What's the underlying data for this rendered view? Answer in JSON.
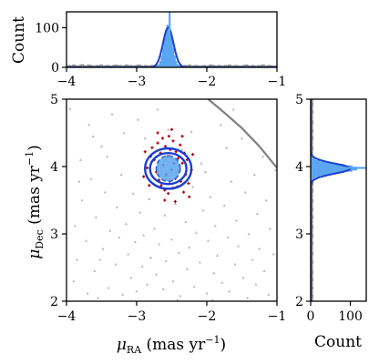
{
  "chart_data": [
    {
      "id": "top-histogram",
      "type": "histogram",
      "xlabel": "",
      "ylabel": "Count",
      "xlim": [
        -4,
        -1
      ],
      "ylim": [
        0,
        140
      ],
      "yticks": [
        "0",
        "100"
      ],
      "xticks": [
        "−4",
        "−3",
        "−2",
        "−1"
      ],
      "background_bins": {
        "x_start": -4.0,
        "x_end": -1.0,
        "bin_width": 0.03,
        "counts": [
          3,
          4,
          2,
          5,
          3,
          2,
          4,
          6,
          3,
          2,
          5,
          4,
          3,
          2,
          4,
          3,
          5,
          2,
          3,
          4,
          3,
          2,
          4,
          5,
          3,
          4,
          2,
          3,
          5,
          3,
          4,
          2,
          3,
          4,
          5,
          3,
          2,
          4,
          3,
          2,
          4,
          3,
          5,
          2,
          3,
          4,
          3,
          2,
          3,
          4,
          5,
          3,
          2,
          4,
          3,
          2,
          4,
          3,
          5,
          2,
          3,
          4,
          3,
          2,
          3,
          4,
          2,
          3,
          5,
          4,
          3,
          2,
          4,
          3,
          2,
          4,
          3,
          5,
          2,
          3,
          4,
          3,
          2,
          3,
          4,
          5,
          3,
          2,
          4,
          3,
          2,
          4,
          3,
          5,
          2,
          3,
          4,
          3,
          2,
          3
        ]
      },
      "member_histogram": {
        "center": -2.55,
        "sigma": 0.055,
        "peak": 108
      },
      "gaussian_fit": {
        "mean": -2.55,
        "sigma": 0.075,
        "amplitude": 100
      },
      "marker_x": -2.53,
      "colors": {
        "member": "#5aa6f0",
        "fit": "#1a3fd1",
        "background": "#7f7f7f"
      }
    },
    {
      "id": "main-scatter",
      "type": "scatter",
      "xlabel_main": "μ",
      "xlabel_sub": "RA",
      "xlabel_units": " (mas yr",
      "xlabel_exp": "−1",
      "xlabel_close": ")",
      "ylabel_main": "μ",
      "ylabel_sub": "Dec",
      "ylabel_units": " (mas yr",
      "ylabel_exp": "−1",
      "ylabel_close": ")",
      "xlim": [
        -4,
        -1
      ],
      "ylim": [
        2,
        5
      ],
      "xticks": [
        "−4",
        "−3",
        "−2",
        "−1"
      ],
      "yticks": [
        "2",
        "3",
        "4",
        "5"
      ],
      "background_points": [
        [
          -3.95,
          4.86
        ],
        [
          -3.9,
          2.3
        ],
        [
          -3.88,
          3.12
        ],
        [
          -3.85,
          2.62
        ],
        [
          -3.8,
          4.1
        ],
        [
          -3.78,
          3.5
        ],
        [
          -3.72,
          2.9
        ],
        [
          -3.7,
          2.12
        ],
        [
          -3.68,
          4.62
        ],
        [
          -3.65,
          3.82
        ],
        [
          -3.6,
          2.45
        ],
        [
          -3.58,
          3.25
        ],
        [
          -3.55,
          2.05
        ],
        [
          -3.5,
          4.3
        ],
        [
          -3.48,
          2.78
        ],
        [
          -3.45,
          3.62
        ],
        [
          -3.4,
          2.2
        ],
        [
          -3.38,
          3.05
        ],
        [
          -3.35,
          4.78
        ],
        [
          -3.3,
          2.55
        ],
        [
          -3.28,
          3.4
        ],
        [
          -3.25,
          2.95
        ],
        [
          -3.2,
          2.1
        ],
        [
          -3.18,
          4.5
        ],
        [
          -3.15,
          3.15
        ],
        [
          -3.12,
          2.7
        ],
        [
          -3.08,
          2.35
        ],
        [
          -3.05,
          3.6
        ],
        [
          -3.02,
          2.88
        ],
        [
          -3.0,
          2.15
        ],
        [
          -2.98,
          4.7
        ],
        [
          -2.95,
          3.32
        ],
        [
          -2.92,
          2.52
        ],
        [
          -2.9,
          2.98
        ],
        [
          -2.85,
          2.25
        ],
        [
          -2.82,
          3.52
        ],
        [
          -2.8,
          2.65
        ],
        [
          -2.75,
          3.08
        ],
        [
          -2.72,
          2.4
        ],
        [
          -2.7,
          4.85
        ],
        [
          -2.68,
          2.85
        ],
        [
          -2.62,
          2.18
        ],
        [
          -2.6,
          3.28
        ],
        [
          -2.58,
          2.6
        ],
        [
          -2.55,
          4.55
        ],
        [
          -2.5,
          2.92
        ],
        [
          -2.48,
          2.3
        ],
        [
          -2.45,
          3.45
        ],
        [
          -2.4,
          2.72
        ],
        [
          -2.38,
          2.08
        ],
        [
          -2.35,
          4.25
        ],
        [
          -2.3,
          3.18
        ],
        [
          -2.28,
          2.48
        ],
        [
          -2.25,
          2.8
        ],
        [
          -2.2,
          3.7
        ],
        [
          -2.18,
          2.22
        ],
        [
          -2.15,
          3.02
        ],
        [
          -2.1,
          2.58
        ],
        [
          -2.08,
          4.05
        ],
        [
          -2.05,
          3.35
        ],
        [
          -2.0,
          2.12
        ],
        [
          -1.98,
          2.9
        ],
        [
          -1.95,
          3.55
        ],
        [
          -1.9,
          2.42
        ],
        [
          -1.88,
          3.12
        ],
        [
          -1.85,
          2.68
        ],
        [
          -1.8,
          4.62
        ],
        [
          -1.78,
          2.28
        ],
        [
          -1.75,
          3.42
        ],
        [
          -1.7,
          2.95
        ],
        [
          -1.68,
          2.15
        ],
        [
          -1.65,
          3.78
        ],
        [
          -1.6,
          2.55
        ],
        [
          -1.58,
          3.2
        ],
        [
          -1.55,
          2.82
        ],
        [
          -1.5,
          4.42
        ],
        [
          -1.48,
          2.35
        ],
        [
          -1.45,
          3.62
        ],
        [
          -1.42,
          2.05
        ],
        [
          -1.4,
          3.0
        ],
        [
          -1.35,
          2.62
        ],
        [
          -1.32,
          3.88
        ],
        [
          -1.3,
          2.25
        ],
        [
          -1.28,
          3.3
        ],
        [
          -1.25,
          2.78
        ],
        [
          -1.2,
          4.15
        ],
        [
          -1.18,
          2.45
        ],
        [
          -1.15,
          3.5
        ],
        [
          -1.12,
          2.1
        ],
        [
          -1.1,
          3.08
        ],
        [
          -1.05,
          2.7
        ],
        [
          -1.02,
          3.95
        ],
        [
          -3.42,
          4.15
        ],
        [
          -3.22,
          3.88
        ],
        [
          -2.02,
          3.92
        ],
        [
          -1.72,
          4.28
        ],
        [
          -3.62,
          4.45
        ],
        [
          -2.88,
          4.42
        ],
        [
          -2.22,
          4.52
        ],
        [
          -1.62,
          4.85
        ],
        [
          -3.82,
          3.78
        ],
        [
          -3.52,
          2.62
        ],
        [
          -2.42,
          2.02
        ],
        [
          -1.92,
          2.02
        ]
      ],
      "member_points": [
        [
          -2.78,
          4.28
        ],
        [
          -2.75,
          4.1
        ],
        [
          -2.72,
          3.92
        ],
        [
          -2.7,
          4.35
        ],
        [
          -2.68,
          3.8
        ],
        [
          -2.66,
          4.2
        ],
        [
          -2.65,
          3.72
        ],
        [
          -2.63,
          4.42
        ],
        [
          -2.62,
          4.02
        ],
        [
          -2.6,
          3.65
        ],
        [
          -2.59,
          4.3
        ],
        [
          -2.58,
          3.88
        ],
        [
          -2.56,
          4.15
        ],
        [
          -2.55,
          3.6
        ],
        [
          -2.54,
          4.45
        ],
        [
          -2.53,
          3.78
        ],
        [
          -2.52,
          4.25
        ],
        [
          -2.5,
          3.95
        ],
        [
          -2.49,
          3.68
        ],
        [
          -2.48,
          4.38
        ],
        [
          -2.47,
          4.05
        ],
        [
          -2.45,
          3.82
        ],
        [
          -2.44,
          4.22
        ],
        [
          -2.42,
          3.7
        ],
        [
          -2.41,
          4.12
        ],
        [
          -2.4,
          3.92
        ],
        [
          -2.38,
          4.32
        ],
        [
          -2.37,
          3.78
        ],
        [
          -2.35,
          4.05
        ],
        [
          -2.33,
          3.62
        ],
        [
          -2.32,
          4.2
        ],
        [
          -2.3,
          3.88
        ],
        [
          -2.28,
          4.1
        ],
        [
          -2.26,
          3.75
        ],
        [
          -2.85,
          3.98
        ],
        [
          -2.82,
          3.72
        ],
        [
          -2.8,
          4.15
        ],
        [
          -2.88,
          4.22
        ],
        [
          -2.22,
          3.95
        ],
        [
          -2.2,
          4.18
        ],
        [
          -2.25,
          3.55
        ],
        [
          -2.6,
          3.5
        ],
        [
          -2.45,
          3.48
        ],
        [
          -2.7,
          4.5
        ],
        [
          -2.5,
          4.55
        ],
        [
          -2.35,
          4.45
        ],
        [
          -2.9,
          3.85
        ]
      ],
      "ellipses": [
        {
          "cx": -2.55,
          "cy": 3.97,
          "rx": 0.17,
          "ry": 0.19,
          "style": "dashed"
        },
        {
          "cx": -2.55,
          "cy": 3.97,
          "rx": 0.26,
          "ry": 0.23,
          "style": "solid"
        },
        {
          "cx": -2.55,
          "cy": 3.97,
          "rx": 0.33,
          "ry": 0.3,
          "style": "solid"
        }
      ],
      "boundary_curve": [
        [
          -1.98,
          5.0
        ],
        [
          -1.75,
          4.8
        ],
        [
          -1.5,
          4.57
        ],
        [
          -1.25,
          4.3
        ],
        [
          -1.0,
          3.98
        ]
      ],
      "colors": {
        "background": "#b8b8b8",
        "member": "#b00010",
        "ellipse": "#1a3fd1",
        "core": "#5aa6f0",
        "curve": "#808080"
      }
    },
    {
      "id": "right-histogram",
      "type": "histogram",
      "orientation": "horizontal",
      "xlabel": "Count",
      "xlim": [
        0,
        140
      ],
      "ylim": [
        2,
        5
      ],
      "xticks": [
        "0",
        "100"
      ],
      "yticks": [
        "2",
        "3",
        "4",
        "5"
      ],
      "background_bins": {
        "y_start": 2.0,
        "y_end": 5.0,
        "bin_width": 0.03,
        "counts": [
          4,
          3,
          5,
          3,
          4,
          2,
          5,
          3,
          4,
          3,
          5,
          4,
          3,
          4,
          5,
          3,
          4,
          3,
          4,
          5,
          3,
          4,
          3,
          5,
          4,
          3,
          4,
          3,
          5,
          4,
          3,
          4,
          5,
          3,
          4,
          3,
          5,
          4,
          3,
          4,
          3,
          5,
          4,
          3,
          4,
          5,
          3,
          4,
          3,
          5,
          4,
          3,
          4,
          3,
          5,
          4,
          3,
          4,
          5,
          3,
          4,
          3,
          5,
          4,
          3,
          4,
          3,
          5,
          4,
          3,
          4,
          5,
          3,
          4,
          3,
          5,
          4,
          3,
          4,
          3,
          5,
          4,
          3,
          4,
          5,
          3,
          4,
          3,
          5,
          4,
          3,
          4,
          3,
          5,
          4,
          3,
          4,
          5,
          3,
          4
        ]
      },
      "member_histogram": {
        "center": 3.97,
        "sigma": 0.06,
        "peak": 118
      },
      "gaussian_fit": {
        "mean": 3.97,
        "sigma": 0.075,
        "amplitude": 100
      },
      "marker_y": 3.98,
      "colors": {
        "member": "#5aa6f0",
        "fit": "#1a3fd1",
        "background": "#7f7f7f"
      }
    }
  ]
}
